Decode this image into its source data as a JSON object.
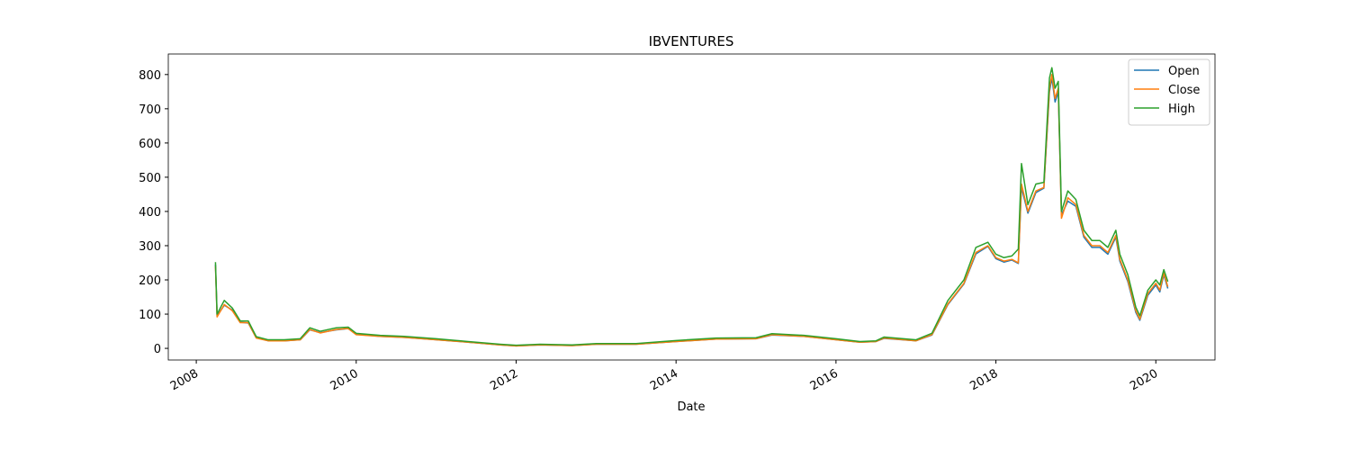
{
  "chart_data": {
    "type": "line",
    "title": "IBVENTURES",
    "x_label": "Date",
    "x": [
      2008.24,
      2008.26,
      2008.35,
      2008.45,
      2008.55,
      2008.65,
      2008.75,
      2008.9,
      2009.1,
      2009.3,
      2009.42,
      2009.55,
      2009.75,
      2009.9,
      2010.0,
      2010.3,
      2010.6,
      2011.0,
      2011.4,
      2011.8,
      2012.0,
      2012.3,
      2012.7,
      2013.0,
      2013.5,
      2014.0,
      2014.5,
      2015.0,
      2015.2,
      2015.6,
      2016.0,
      2016.3,
      2016.5,
      2016.6,
      2017.0,
      2017.2,
      2017.4,
      2017.6,
      2017.75,
      2017.9,
      2018.0,
      2018.1,
      2018.2,
      2018.28,
      2018.32,
      2018.4,
      2018.5,
      2018.6,
      2018.67,
      2018.7,
      2018.74,
      2018.78,
      2018.82,
      2018.9,
      2019.0,
      2019.1,
      2019.2,
      2019.3,
      2019.4,
      2019.5,
      2019.55,
      2019.65,
      2019.75,
      2019.8,
      2019.9,
      2020.0,
      2020.05,
      2020.1,
      2020.15
    ],
    "series": [
      {
        "name": "Open",
        "color": "#1f77b4",
        "values": [
          245,
          95,
          126,
          112,
          76,
          74,
          31,
          22,
          22,
          25,
          54,
          46,
          54,
          58,
          41,
          35,
          32,
          25,
          18,
          10,
          7,
          10,
          8,
          12,
          12,
          20,
          27,
          28,
          39,
          35,
          25,
          18,
          20,
          29,
          22,
          39,
          128,
          188,
          276,
          298,
          262,
          252,
          258,
          248,
          470,
          395,
          455,
          468,
          750,
          790,
          720,
          750,
          390,
          430,
          415,
          325,
          295,
          295,
          275,
          325,
          255,
          195,
          105,
          82,
          155,
          185,
          165,
          215,
          175
        ]
      },
      {
        "name": "Close",
        "color": "#ff7f0e",
        "values": [
          240,
          92,
          128,
          110,
          75,
          75,
          30,
          22,
          22,
          25,
          55,
          45,
          55,
          58,
          40,
          35,
          32,
          25,
          18,
          10,
          7,
          10,
          8,
          12,
          12,
          20,
          27,
          28,
          40,
          35,
          25,
          18,
          20,
          30,
          22,
          40,
          130,
          190,
          280,
          300,
          265,
          255,
          260,
          250,
          480,
          400,
          460,
          470,
          760,
          800,
          730,
          760,
          380,
          440,
          420,
          330,
          300,
          300,
          280,
          330,
          260,
          200,
          110,
          85,
          160,
          190,
          170,
          220,
          180
        ]
      },
      {
        "name": "High",
        "color": "#2ca02c",
        "values": [
          252,
          100,
          140,
          118,
          80,
          80,
          34,
          25,
          25,
          28,
          60,
          50,
          60,
          62,
          44,
          38,
          35,
          28,
          20,
          12,
          9,
          12,
          10,
          14,
          14,
          23,
          30,
          31,
          43,
          38,
          28,
          20,
          22,
          33,
          25,
          44,
          140,
          200,
          295,
          310,
          275,
          265,
          270,
          290,
          540,
          420,
          480,
          485,
          790,
          820,
          760,
          780,
          400,
          460,
          435,
          345,
          315,
          315,
          295,
          345,
          275,
          215,
          120,
          95,
          170,
          200,
          185,
          230,
          195
        ]
      }
    ],
    "xlim": [
      2007.65,
      2020.74
    ],
    "xticks": [
      2008,
      2010,
      2012,
      2014,
      2016,
      2018,
      2020
    ],
    "ylim": [
      -34,
      860
    ],
    "yticks": [
      0,
      100,
      200,
      300,
      400,
      500,
      600,
      700,
      800
    ],
    "legend": "upper right"
  }
}
